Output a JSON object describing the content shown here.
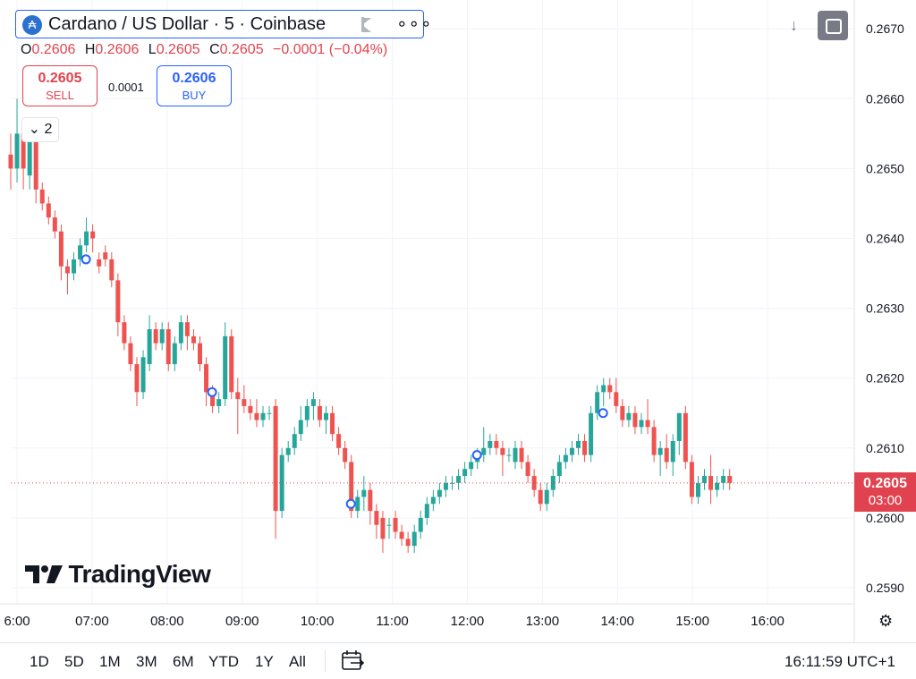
{
  "header": {
    "symbol_title": "Cardano / US Dollar · 5 · Coinbase",
    "logo_glyph": "₳",
    "more_glyph": "∘∘∘",
    "ohlc": {
      "o_label": "O",
      "o": "0.2606",
      "h_label": "H",
      "h": "0.2606",
      "l_label": "L",
      "l": "0.2605",
      "c_label": "C",
      "c": "0.2605",
      "change": "−0.0001 (−0.04%)"
    }
  },
  "trade": {
    "sell_price": "0.2605",
    "sell_label": "SELL",
    "spread": "0.0001",
    "buy_price": "0.2606",
    "buy_label": "BUY"
  },
  "indicators_collapse": {
    "label": "⌄ 2"
  },
  "branding": {
    "name": "TradingView"
  },
  "toolbar": {
    "scroll_glyph": "↓",
    "settings_glyph": "⚙"
  },
  "last_price": {
    "price": "0.2605",
    "countdown": "03:00"
  },
  "bottom_bar": {
    "ranges": [
      "1D",
      "5D",
      "1M",
      "3M",
      "6M",
      "YTD",
      "1Y",
      "All"
    ],
    "clock": "16:11:59 UTC+1"
  },
  "colors": {
    "up": "#26a69a",
    "down": "#ef5350",
    "accent": "#2962ff",
    "last_price": "#e0434f"
  },
  "chart_data": {
    "type": "candlestick",
    "interval_minutes": 5,
    "ylim": [
      0.2585,
      0.2672
    ],
    "y_ticks": [
      "0.2590",
      "0.2600",
      "0.2610",
      "0.2620",
      "0.2630",
      "0.2640",
      "0.2650",
      "0.2660",
      "0.2670"
    ],
    "x_ticks": [
      "6:00",
      "07:00",
      "08:00",
      "09:00",
      "10:00",
      "11:00",
      "12:00",
      "13:00",
      "14:00",
      "15:00",
      "16:00"
    ],
    "x_start_time": "05:55",
    "last_price": 0.2605,
    "candles": [
      [
        0.2652,
        0.2655,
        0.2647,
        0.265
      ],
      [
        0.265,
        0.266,
        0.2648,
        0.2655
      ],
      [
        0.2655,
        0.2656,
        0.2647,
        0.265
      ],
      [
        0.2649,
        0.2655,
        0.2647,
        0.2654
      ],
      [
        0.2654,
        0.2655,
        0.2645,
        0.2647
      ],
      [
        0.2647,
        0.2648,
        0.2644,
        0.2645
      ],
      [
        0.2645,
        0.2646,
        0.2642,
        0.2643
      ],
      [
        0.2643,
        0.2644,
        0.264,
        0.2641
      ],
      [
        0.2641,
        0.2642,
        0.2634,
        0.2636
      ],
      [
        0.2636,
        0.2637,
        0.2632,
        0.2635
      ],
      [
        0.2635,
        0.2638,
        0.2634,
        0.2637
      ],
      [
        0.2637,
        0.264,
        0.2636,
        0.2639
      ],
      [
        0.2639,
        0.2643,
        0.2638,
        0.2641
      ],
      [
        0.2641,
        0.2642,
        0.2638,
        0.264
      ],
      [
        0.2637,
        0.2638,
        0.2635,
        0.2636
      ],
      [
        0.2638,
        0.2639,
        0.2636,
        0.2637
      ],
      [
        0.2637,
        0.2638,
        0.2633,
        0.2634
      ],
      [
        0.2634,
        0.2635,
        0.2626,
        0.2628
      ],
      [
        0.2628,
        0.2629,
        0.2624,
        0.2625
      ],
      [
        0.2625,
        0.2626,
        0.2621,
        0.2622
      ],
      [
        0.2622,
        0.2623,
        0.2616,
        0.2618
      ],
      [
        0.2618,
        0.2624,
        0.2617,
        0.2623
      ],
      [
        0.2622,
        0.2629,
        0.2621,
        0.2627
      ],
      [
        0.2627,
        0.2628,
        0.2624,
        0.2625
      ],
      [
        0.2625,
        0.2628,
        0.2624,
        0.2627
      ],
      [
        0.2627,
        0.2628,
        0.2621,
        0.2622
      ],
      [
        0.2622,
        0.2626,
        0.2621,
        0.2625
      ],
      [
        0.2625,
        0.2629,
        0.2624,
        0.2628
      ],
      [
        0.2628,
        0.2629,
        0.2624,
        0.2626
      ],
      [
        0.2626,
        0.2627,
        0.2624,
        0.2625
      ],
      [
        0.2625,
        0.2626,
        0.2621,
        0.2622
      ],
      [
        0.2622,
        0.2623,
        0.2616,
        0.2618
      ],
      [
        0.2618,
        0.2619,
        0.2615,
        0.2616
      ],
      [
        0.2616,
        0.2618,
        0.2615,
        0.2617
      ],
      [
        0.2617,
        0.2628,
        0.2616,
        0.2626
      ],
      [
        0.2626,
        0.2627,
        0.2617,
        0.2618
      ],
      [
        0.2618,
        0.262,
        0.2612,
        0.2617
      ],
      [
        0.2617,
        0.2619,
        0.2615,
        0.2616
      ],
      [
        0.2616,
        0.2617,
        0.2614,
        0.2615
      ],
      [
        0.2615,
        0.2617,
        0.2613,
        0.2614
      ],
      [
        0.2614,
        0.2616,
        0.2613,
        0.2615
      ],
      [
        0.2615,
        0.2616,
        0.2614,
        0.2615
      ],
      [
        0.2616,
        0.2617,
        0.2597,
        0.2601
      ],
      [
        0.2601,
        0.261,
        0.26,
        0.2609
      ],
      [
        0.2609,
        0.2611,
        0.2608,
        0.261
      ],
      [
        0.261,
        0.2613,
        0.2609,
        0.2612
      ],
      [
        0.2612,
        0.2616,
        0.2611,
        0.2614
      ],
      [
        0.2614,
        0.2617,
        0.2613,
        0.2616
      ],
      [
        0.2616,
        0.2618,
        0.2614,
        0.2617
      ],
      [
        0.2616,
        0.2617,
        0.2613,
        0.2614
      ],
      [
        0.2614,
        0.2616,
        0.2612,
        0.2615
      ],
      [
        0.2615,
        0.2616,
        0.2611,
        0.2612
      ],
      [
        0.2612,
        0.2613,
        0.2609,
        0.261
      ],
      [
        0.261,
        0.2611,
        0.2607,
        0.2608
      ],
      [
        0.2608,
        0.2609,
        0.26,
        0.2601
      ],
      [
        0.2601,
        0.2604,
        0.26,
        0.2603
      ],
      [
        0.2603,
        0.2606,
        0.2601,
        0.2604
      ],
      [
        0.2604,
        0.2605,
        0.2599,
        0.2601
      ],
      [
        0.2601,
        0.2602,
        0.2597,
        0.2599
      ],
      [
        0.26,
        0.2601,
        0.2595,
        0.2597
      ],
      [
        0.2599,
        0.26,
        0.2597,
        0.2599
      ],
      [
        0.26,
        0.2601,
        0.2597,
        0.2598
      ],
      [
        0.2598,
        0.2599,
        0.2596,
        0.2597
      ],
      [
        0.2597,
        0.2598,
        0.2595,
        0.2596
      ],
      [
        0.2596,
        0.2599,
        0.2595,
        0.2598
      ],
      [
        0.2598,
        0.2601,
        0.2597,
        0.26
      ],
      [
        0.26,
        0.2603,
        0.2599,
        0.2602
      ],
      [
        0.2602,
        0.2604,
        0.2601,
        0.2603
      ],
      [
        0.2603,
        0.2605,
        0.2602,
        0.2604
      ],
      [
        0.2604,
        0.2606,
        0.2603,
        0.2605
      ],
      [
        0.2605,
        0.2606,
        0.2604,
        0.2605
      ],
      [
        0.2605,
        0.2607,
        0.2604,
        0.2606
      ],
      [
        0.2606,
        0.2608,
        0.2605,
        0.2607
      ],
      [
        0.2607,
        0.2609,
        0.2606,
        0.2608
      ],
      [
        0.2608,
        0.261,
        0.2607,
        0.2609
      ],
      [
        0.2609,
        0.2613,
        0.2608,
        0.261
      ],
      [
        0.261,
        0.2612,
        0.2609,
        0.2611
      ],
      [
        0.2611,
        0.2612,
        0.2609,
        0.261
      ],
      [
        0.261,
        0.2611,
        0.2606,
        0.2609
      ],
      [
        0.2609,
        0.261,
        0.2608,
        0.2609
      ],
      [
        0.2608,
        0.2611,
        0.2607,
        0.261
      ],
      [
        0.261,
        0.2611,
        0.2607,
        0.2608
      ],
      [
        0.2608,
        0.2609,
        0.2605,
        0.2606
      ],
      [
        0.2606,
        0.2607,
        0.2603,
        0.2604
      ],
      [
        0.2604,
        0.2605,
        0.2601,
        0.2602
      ],
      [
        0.2602,
        0.2605,
        0.2601,
        0.2604
      ],
      [
        0.2604,
        0.2607,
        0.2603,
        0.2606
      ],
      [
        0.2606,
        0.2609,
        0.2605,
        0.2608
      ],
      [
        0.2608,
        0.261,
        0.2607,
        0.2609
      ],
      [
        0.2609,
        0.2611,
        0.2608,
        0.261
      ],
      [
        0.261,
        0.2612,
        0.2609,
        0.2611
      ],
      [
        0.2611,
        0.2612,
        0.2608,
        0.2609
      ],
      [
        0.2609,
        0.2616,
        0.2608,
        0.2615
      ],
      [
        0.2615,
        0.2619,
        0.2614,
        0.2618
      ],
      [
        0.2618,
        0.262,
        0.2616,
        0.2619
      ],
      [
        0.2619,
        0.262,
        0.2617,
        0.2618
      ],
      [
        0.2618,
        0.262,
        0.2615,
        0.2616
      ],
      [
        0.2616,
        0.2617,
        0.2613,
        0.2614
      ],
      [
        0.2614,
        0.2616,
        0.2613,
        0.2615
      ],
      [
        0.2615,
        0.2616,
        0.2612,
        0.2613
      ],
      [
        0.2613,
        0.2615,
        0.2612,
        0.2614
      ],
      [
        0.2614,
        0.2617,
        0.2612,
        0.2613
      ],
      [
        0.2613,
        0.2614,
        0.2608,
        0.2609
      ],
      [
        0.2609,
        0.2611,
        0.2606,
        0.261
      ],
      [
        0.261,
        0.2612,
        0.2607,
        0.2608
      ],
      [
        0.2608,
        0.2612,
        0.2606,
        0.2611
      ],
      [
        0.2611,
        0.2615,
        0.2609,
        0.2615
      ],
      [
        0.2615,
        0.2616,
        0.2607,
        0.2608
      ],
      [
        0.2608,
        0.2609,
        0.2602,
        0.2603
      ],
      [
        0.2603,
        0.2606,
        0.2602,
        0.2605
      ],
      [
        0.2605,
        0.2607,
        0.2604,
        0.2606
      ],
      [
        0.2606,
        0.2609,
        0.2602,
        0.2604
      ],
      [
        0.2604,
        0.2606,
        0.2603,
        0.2605
      ],
      [
        0.2605,
        0.2607,
        0.2604,
        0.2606
      ],
      [
        0.2606,
        0.2607,
        0.2604,
        0.2605
      ]
    ],
    "markers": [
      {
        "index": 12,
        "price": 0.2637
      },
      {
        "index": 32,
        "price": 0.2618
      },
      {
        "index": 54,
        "price": 0.2602
      },
      {
        "index": 74,
        "price": 0.2609
      },
      {
        "index": 94,
        "price": 0.2615
      }
    ]
  }
}
